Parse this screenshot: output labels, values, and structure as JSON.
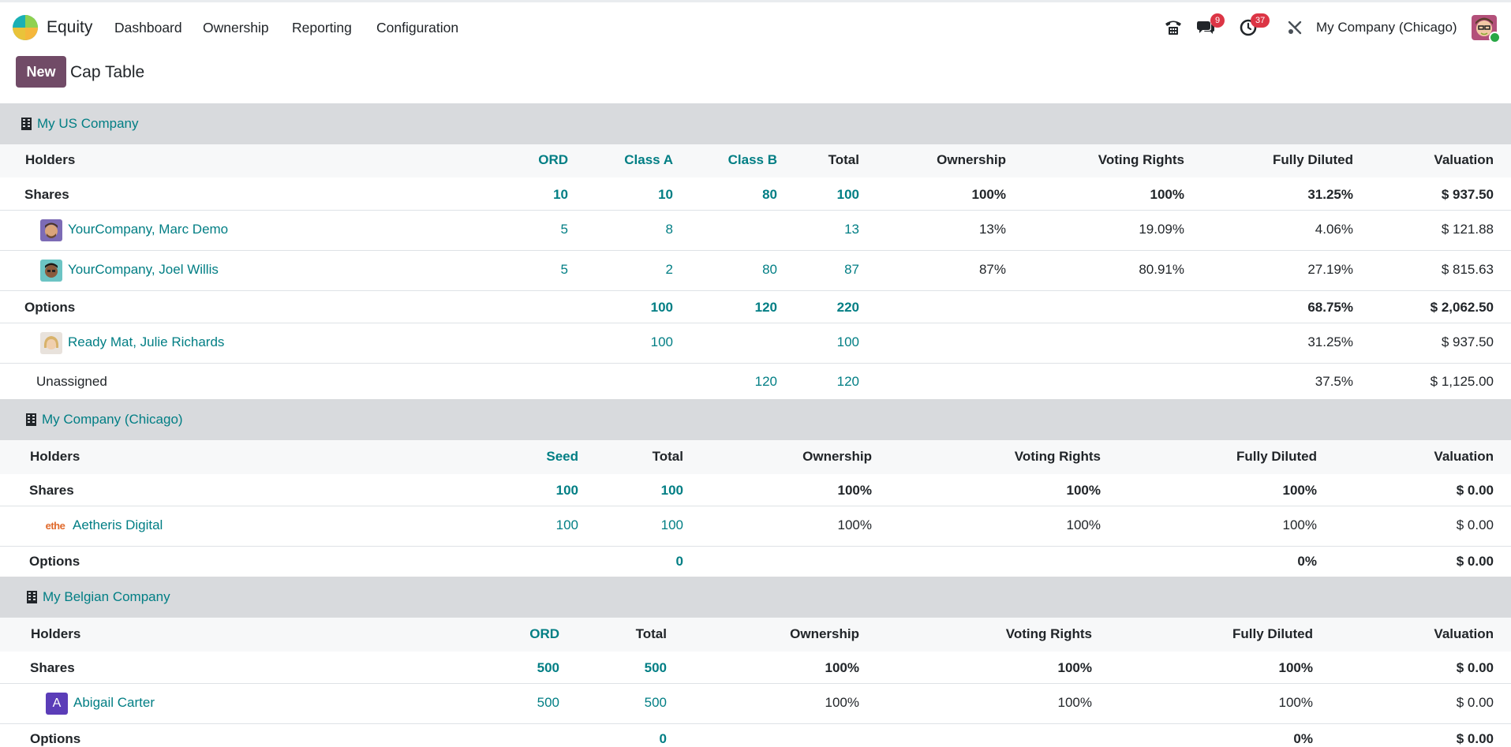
{
  "navbar": {
    "app_name": "Equity",
    "menu": [
      "Dashboard",
      "Ownership",
      "Reporting",
      "Configuration"
    ],
    "messages_count": "9",
    "activities_count": "37",
    "company": "My Company (Chicago)"
  },
  "control": {
    "new_label": "New",
    "title": "Cap Table"
  },
  "colors": {
    "accent": "#017e84",
    "brand": "#714b67",
    "header_bg": "#d8dadd",
    "badge": "#dc3545"
  },
  "sections": [
    {
      "company": "My US Company",
      "headers": [
        "Holders",
        "ORD",
        "Class A",
        "Class B",
        "Total",
        "Ownership",
        "Voting Rights",
        "Fully Diluted",
        "Valuation"
      ],
      "shares": {
        "label": "Shares",
        "values": [
          "10",
          "10",
          "80",
          "100",
          "100%",
          "100%",
          "31.25%",
          "$ 937.50"
        ]
      },
      "holders": [
        {
          "name": "YourCompany, Marc Demo",
          "values": [
            "5",
            "8",
            "",
            "13",
            "13%",
            "19.09%",
            "4.06%",
            "$ 121.88"
          ]
        },
        {
          "name": "YourCompany, Joel Willis",
          "values": [
            "5",
            "2",
            "80",
            "87",
            "87%",
            "80.91%",
            "27.19%",
            "$ 815.63"
          ]
        }
      ],
      "options": {
        "label": "Options",
        "values": [
          "",
          "100",
          "120",
          "220",
          "",
          "",
          "68.75%",
          "$ 2,062.50"
        ]
      },
      "option_holders": [
        {
          "name": "Ready Mat, Julie Richards",
          "values": [
            "",
            "100",
            "",
            "100",
            "",
            "",
            "31.25%",
            "$ 937.50"
          ]
        }
      ],
      "unassigned": {
        "label": "Unassigned",
        "values": [
          "",
          "",
          "120",
          "120",
          "",
          "",
          "37.5%",
          "$ 1,125.00"
        ]
      }
    },
    {
      "company": "My Company (Chicago)",
      "headers": [
        "Holders",
        "Seed",
        "Total",
        "Ownership",
        "Voting Rights",
        "Fully Diluted",
        "Valuation"
      ],
      "shares": {
        "label": "Shares",
        "values": [
          "100",
          "100",
          "100%",
          "100%",
          "100%",
          "$ 0.00"
        ]
      },
      "holders": [
        {
          "name": "Aetheris Digital",
          "logo_text": "ethe",
          "values": [
            "100",
            "100",
            "100%",
            "100%",
            "100%",
            "$ 0.00"
          ]
        }
      ],
      "options": {
        "label": "Options",
        "values": [
          "",
          "0",
          "",
          "",
          "0%",
          "$ 0.00"
        ]
      }
    },
    {
      "company": "My Belgian Company",
      "headers": [
        "Holders",
        "ORD",
        "Total",
        "Ownership",
        "Voting Rights",
        "Fully Diluted",
        "Valuation"
      ],
      "shares": {
        "label": "Shares",
        "values": [
          "500",
          "500",
          "100%",
          "100%",
          "100%",
          "$ 0.00"
        ]
      },
      "holders": [
        {
          "name": "Abigail Carter",
          "initial": "A",
          "values": [
            "500",
            "500",
            "100%",
            "100%",
            "100%",
            "$ 0.00"
          ]
        }
      ],
      "options": {
        "label": "Options",
        "values": [
          "",
          "0",
          "",
          "",
          "0%",
          "$ 0.00"
        ]
      }
    }
  ]
}
